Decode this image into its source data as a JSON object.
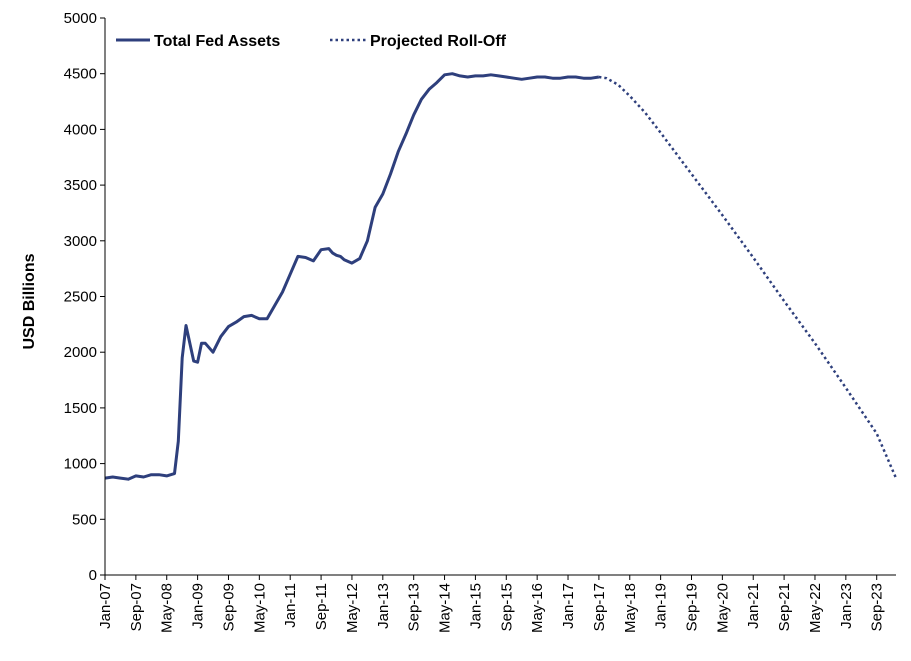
{
  "chart_data": {
    "type": "line",
    "title": "",
    "xlabel": "",
    "ylabel": "USD Billions",
    "ylim": [
      0,
      5000
    ],
    "y_ticks": [
      0,
      500,
      1000,
      1500,
      2000,
      2500,
      3000,
      3500,
      4000,
      4500,
      5000
    ],
    "x_tick_labels": [
      "Jan-07",
      "Sep-07",
      "May-08",
      "Jan-09",
      "Sep-09",
      "May-10",
      "Jan-11",
      "Sep-11",
      "May-12",
      "Jan-13",
      "Sep-13",
      "May-14",
      "Jan-15",
      "Sep-15",
      "May-16",
      "Jan-17",
      "Sep-17",
      "May-18",
      "Jan-19",
      "Sep-19",
      "May-20",
      "Jan-21",
      "Sep-21",
      "May-22",
      "Jan-23",
      "Sep-23"
    ],
    "x_range": [
      "Jan-07",
      "Feb-24"
    ],
    "grid": false,
    "legend_position": "top-left",
    "colors": {
      "series": "#2e3f7c",
      "axis": "#000000"
    },
    "series": [
      {
        "name": "Total Fed Assets",
        "style": "solid",
        "x": [
          "Jan-07",
          "Mar-07",
          "May-07",
          "Jul-07",
          "Sep-07",
          "Nov-07",
          "Jan-08",
          "Mar-08",
          "May-08",
          "Jul-08",
          "Aug-08",
          "Sep-08",
          "Oct-08",
          "Dec-08",
          "Jan-09",
          "Feb-09",
          "Mar-09",
          "May-09",
          "Jul-09",
          "Sep-09",
          "Nov-09",
          "Jan-10",
          "Mar-10",
          "May-10",
          "Jul-10",
          "Sep-10",
          "Nov-10",
          "Jan-11",
          "Mar-11",
          "May-11",
          "Jul-11",
          "Sep-11",
          "Nov-11",
          "Dec-11",
          "Jan-12",
          "Feb-12",
          "Mar-12",
          "May-12",
          "Jul-12",
          "Sep-12",
          "Nov-12",
          "Jan-13",
          "Mar-13",
          "May-13",
          "Jul-13",
          "Sep-13",
          "Nov-13",
          "Jan-14",
          "Mar-14",
          "May-14",
          "Jul-14",
          "Sep-14",
          "Nov-14",
          "Jan-15",
          "Mar-15",
          "May-15",
          "Jul-15",
          "Sep-15",
          "Nov-15",
          "Jan-16",
          "Mar-16",
          "May-16",
          "Jul-16",
          "Sep-16",
          "Nov-16",
          "Jan-17",
          "Mar-17",
          "May-17",
          "Jul-17",
          "Sep-17"
        ],
        "values": [
          870,
          880,
          870,
          860,
          890,
          880,
          900,
          900,
          890,
          910,
          1200,
          1950,
          2240,
          1920,
          1910,
          2080,
          2080,
          2000,
          2140,
          2230,
          2270,
          2320,
          2330,
          2300,
          2300,
          2420,
          2540,
          2700,
          2860,
          2850,
          2820,
          2920,
          2930,
          2890,
          2870,
          2860,
          2830,
          2800,
          2840,
          3000,
          3300,
          3420,
          3600,
          3800,
          3960,
          4130,
          4270,
          4360,
          4420,
          4490,
          4500,
          4480,
          4470,
          4480,
          4480,
          4490,
          4480,
          4470,
          4460,
          4450,
          4460,
          4470,
          4470,
          4460,
          4460,
          4470,
          4470,
          4460,
          4460,
          4470
        ]
      },
      {
        "name": "Projected Roll-Off",
        "style": "dotted",
        "x": [
          "Sep-17",
          "Nov-17",
          "Feb-18",
          "May-18",
          "Sep-18",
          "Jan-19",
          "Sep-19",
          "May-20",
          "Jan-21",
          "Sep-21",
          "May-22",
          "Jan-23",
          "Sep-23",
          "Feb-24"
        ],
        "values": [
          4470,
          4460,
          4400,
          4300,
          4150,
          3970,
          3600,
          3230,
          2850,
          2460,
          2080,
          1680,
          1270,
          870
        ]
      }
    ]
  }
}
